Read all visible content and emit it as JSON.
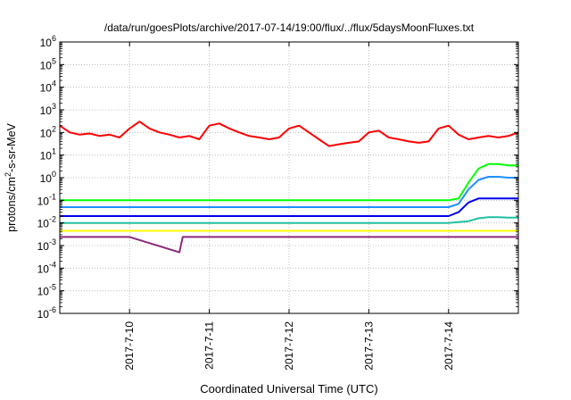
{
  "chart_data": {
    "type": "line",
    "title": "/data/run/goesPlots/archive/2017-07-14/19:00/flux/../flux/5daysMoonFluxes.txt",
    "xlabel": "Coordinated Universal Time (UTC)",
    "ylabel": "protons/cm²-s-sr-MeV",
    "ylabel_parts": {
      "main": "protons/cm",
      "sup": "2",
      "rest": "-s-sr-MeV"
    },
    "y_scale": "log",
    "ylim": [
      1e-06,
      1000000.0
    ],
    "y_ticks": [
      {
        "value": 1000000.0,
        "base": "10",
        "exp": "6"
      },
      {
        "value": 100000.0,
        "base": "10",
        "exp": "5"
      },
      {
        "value": 10000.0,
        "base": "10",
        "exp": "4"
      },
      {
        "value": 1000.0,
        "base": "10",
        "exp": "3"
      },
      {
        "value": 100.0,
        "base": "10",
        "exp": "2"
      },
      {
        "value": 10.0,
        "base": "10",
        "exp": "1"
      },
      {
        "value": 1.0,
        "base": "10",
        "exp": "0"
      },
      {
        "value": 0.1,
        "base": "10",
        "exp": "-1"
      },
      {
        "value": 0.01,
        "base": "10",
        "exp": "-2"
      },
      {
        "value": 0.001,
        "base": "10",
        "exp": "-3"
      },
      {
        "value": 0.0001,
        "base": "10",
        "exp": "-4"
      },
      {
        "value": 1e-05,
        "base": "10",
        "exp": "-5"
      },
      {
        "value": 1e-06,
        "base": "10",
        "exp": "-6"
      }
    ],
    "xlim": [
      "2017-07-09 03:00",
      "2017-07-14 21:00"
    ],
    "x_ticks": [
      {
        "date": "2017-07-10 00:00",
        "label": "2017-7-10"
      },
      {
        "date": "2017-07-11 00:00",
        "label": "2017-7-11"
      },
      {
        "date": "2017-07-12 00:00",
        "label": "2017-7-12"
      },
      {
        "date": "2017-07-13 00:00",
        "label": "2017-7-13"
      },
      {
        "date": "2017-07-14 00:00",
        "label": "2017-7-14"
      }
    ],
    "grid": true,
    "series": [
      {
        "color": "#ff0000",
        "points": [
          [
            "2017-07-09 03:00",
            200
          ],
          [
            "2017-07-09 06:00",
            100
          ],
          [
            "2017-07-09 09:00",
            80
          ],
          [
            "2017-07-09 12:00",
            90
          ],
          [
            "2017-07-09 15:00",
            70
          ],
          [
            "2017-07-09 18:00",
            80
          ],
          [
            "2017-07-09 21:00",
            60
          ],
          [
            "2017-07-10 00:00",
            150
          ],
          [
            "2017-07-10 03:00",
            300
          ],
          [
            "2017-07-10 06:00",
            150
          ],
          [
            "2017-07-10 09:00",
            100
          ],
          [
            "2017-07-10 12:00",
            80
          ],
          [
            "2017-07-10 15:00",
            60
          ],
          [
            "2017-07-10 18:00",
            70
          ],
          [
            "2017-07-10 21:00",
            50
          ],
          [
            "2017-07-11 00:00",
            200
          ],
          [
            "2017-07-11 03:00",
            250
          ],
          [
            "2017-07-11 06:00",
            150
          ],
          [
            "2017-07-11 09:00",
            100
          ],
          [
            "2017-07-11 12:00",
            70
          ],
          [
            "2017-07-11 15:00",
            60
          ],
          [
            "2017-07-11 18:00",
            50
          ],
          [
            "2017-07-11 21:00",
            60
          ],
          [
            "2017-07-12 00:00",
            150
          ],
          [
            "2017-07-12 03:00",
            200
          ],
          [
            "2017-07-12 06:00",
            100
          ],
          [
            "2017-07-12 09:00",
            50
          ],
          [
            "2017-07-12 12:00",
            25
          ],
          [
            "2017-07-12 15:00",
            30
          ],
          [
            "2017-07-12 18:00",
            35
          ],
          [
            "2017-07-12 21:00",
            40
          ],
          [
            "2017-07-13 00:00",
            100
          ],
          [
            "2017-07-13 03:00",
            120
          ],
          [
            "2017-07-13 06:00",
            60
          ],
          [
            "2017-07-13 09:00",
            50
          ],
          [
            "2017-07-13 12:00",
            40
          ],
          [
            "2017-07-13 15:00",
            35
          ],
          [
            "2017-07-13 18:00",
            40
          ],
          [
            "2017-07-13 21:00",
            150
          ],
          [
            "2017-07-14 00:00",
            200
          ],
          [
            "2017-07-14 03:00",
            80
          ],
          [
            "2017-07-14 06:00",
            50
          ],
          [
            "2017-07-14 09:00",
            60
          ],
          [
            "2017-07-14 12:00",
            70
          ],
          [
            "2017-07-14 15:00",
            60
          ],
          [
            "2017-07-14 18:00",
            70
          ],
          [
            "2017-07-14 21:00",
            100
          ]
        ]
      },
      {
        "color": "#00ff00",
        "points": [
          [
            "2017-07-09 03:00",
            0.1
          ],
          [
            "2017-07-09 12:00",
            0.1
          ],
          [
            "2017-07-10 00:00",
            0.1
          ],
          [
            "2017-07-10 12:00",
            0.1
          ],
          [
            "2017-07-11 00:00",
            0.1
          ],
          [
            "2017-07-11 12:00",
            0.1
          ],
          [
            "2017-07-12 00:00",
            0.1
          ],
          [
            "2017-07-12 12:00",
            0.1
          ],
          [
            "2017-07-13 00:00",
            0.1
          ],
          [
            "2017-07-13 12:00",
            0.1
          ],
          [
            "2017-07-14 00:00",
            0.1
          ],
          [
            "2017-07-14 03:00",
            0.12
          ],
          [
            "2017-07-14 06:00",
            0.6
          ],
          [
            "2017-07-14 09:00",
            2.5
          ],
          [
            "2017-07-14 12:00",
            4
          ],
          [
            "2017-07-14 15:00",
            4
          ],
          [
            "2017-07-14 18:00",
            3.5
          ],
          [
            "2017-07-14 21:00",
            3.5
          ]
        ]
      },
      {
        "color": "#1e90ff",
        "points": [
          [
            "2017-07-09 03:00",
            0.05
          ],
          [
            "2017-07-09 12:00",
            0.05
          ],
          [
            "2017-07-10 00:00",
            0.05
          ],
          [
            "2017-07-10 12:00",
            0.05
          ],
          [
            "2017-07-11 00:00",
            0.05
          ],
          [
            "2017-07-11 12:00",
            0.05
          ],
          [
            "2017-07-12 00:00",
            0.05
          ],
          [
            "2017-07-12 12:00",
            0.05
          ],
          [
            "2017-07-13 00:00",
            0.05
          ],
          [
            "2017-07-13 12:00",
            0.05
          ],
          [
            "2017-07-14 00:00",
            0.05
          ],
          [
            "2017-07-14 03:00",
            0.07
          ],
          [
            "2017-07-14 06:00",
            0.3
          ],
          [
            "2017-07-14 09:00",
            0.8
          ],
          [
            "2017-07-14 12:00",
            1.1
          ],
          [
            "2017-07-14 15:00",
            1.1
          ],
          [
            "2017-07-14 18:00",
            1.0
          ],
          [
            "2017-07-14 21:00",
            1.0
          ]
        ]
      },
      {
        "color": "#0000ee",
        "points": [
          [
            "2017-07-09 03:00",
            0.02
          ],
          [
            "2017-07-09 12:00",
            0.02
          ],
          [
            "2017-07-10 00:00",
            0.02
          ],
          [
            "2017-07-10 12:00",
            0.02
          ],
          [
            "2017-07-11 00:00",
            0.02
          ],
          [
            "2017-07-11 12:00",
            0.02
          ],
          [
            "2017-07-12 00:00",
            0.02
          ],
          [
            "2017-07-12 12:00",
            0.02
          ],
          [
            "2017-07-13 00:00",
            0.02
          ],
          [
            "2017-07-13 12:00",
            0.02
          ],
          [
            "2017-07-14 00:00",
            0.02
          ],
          [
            "2017-07-14 03:00",
            0.03
          ],
          [
            "2017-07-14 06:00",
            0.08
          ],
          [
            "2017-07-14 09:00",
            0.12
          ],
          [
            "2017-07-14 12:00",
            0.12
          ],
          [
            "2017-07-14 15:00",
            0.12
          ],
          [
            "2017-07-14 18:00",
            0.12
          ],
          [
            "2017-07-14 21:00",
            0.12
          ]
        ]
      },
      {
        "color": "#20c0a0",
        "points": [
          [
            "2017-07-09 03:00",
            0.01
          ],
          [
            "2017-07-09 12:00",
            0.01
          ],
          [
            "2017-07-10 00:00",
            0.01
          ],
          [
            "2017-07-10 12:00",
            0.01
          ],
          [
            "2017-07-11 00:00",
            0.01
          ],
          [
            "2017-07-11 12:00",
            0.01
          ],
          [
            "2017-07-12 00:00",
            0.01
          ],
          [
            "2017-07-12 12:00",
            0.01
          ],
          [
            "2017-07-13 00:00",
            0.01
          ],
          [
            "2017-07-13 12:00",
            0.01
          ],
          [
            "2017-07-14 00:00",
            0.01
          ],
          [
            "2017-07-14 06:00",
            0.012
          ],
          [
            "2017-07-14 09:00",
            0.016
          ],
          [
            "2017-07-14 12:00",
            0.018
          ],
          [
            "2017-07-14 15:00",
            0.018
          ],
          [
            "2017-07-14 18:00",
            0.017
          ],
          [
            "2017-07-14 21:00",
            0.017
          ]
        ]
      },
      {
        "color": "#ffff00",
        "points": [
          [
            "2017-07-09 03:00",
            0.0045
          ],
          [
            "2017-07-10 00:00",
            0.0045
          ],
          [
            "2017-07-11 00:00",
            0.0045
          ],
          [
            "2017-07-12 00:00",
            0.0045
          ],
          [
            "2017-07-13 00:00",
            0.0045
          ],
          [
            "2017-07-14 00:00",
            0.0045
          ],
          [
            "2017-07-14 21:00",
            0.0045
          ]
        ]
      },
      {
        "color": "#8b2a7a",
        "points": [
          [
            "2017-07-09 03:00",
            0.0024
          ],
          [
            "2017-07-10 00:00",
            0.0024
          ],
          [
            "2017-07-10 15:00",
            0.0005
          ],
          [
            "2017-07-10 16:00",
            0.0024
          ],
          [
            "2017-07-11 00:00",
            0.0024
          ],
          [
            "2017-07-12 00:00",
            0.0024
          ],
          [
            "2017-07-13 00:00",
            0.0024
          ],
          [
            "2017-07-14 00:00",
            0.0024
          ],
          [
            "2017-07-14 21:00",
            0.0024
          ]
        ]
      }
    ]
  }
}
